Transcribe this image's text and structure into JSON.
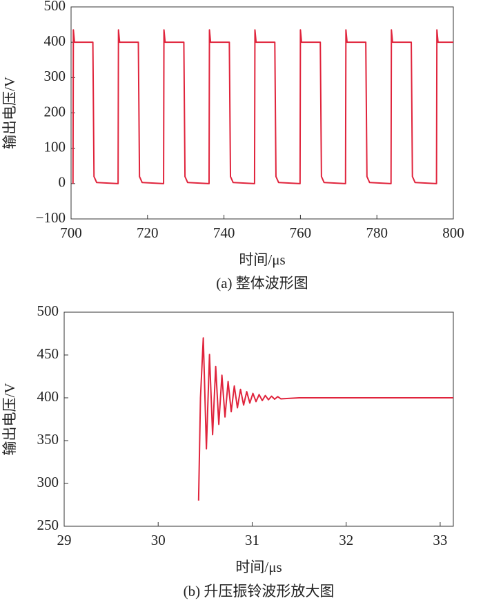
{
  "chart_data": [
    {
      "type": "line",
      "caption": "(a) 整体波形图",
      "xlabel": "时间/μs",
      "ylabel": "输出电压/V",
      "color": "#e0243c",
      "xlim": [
        700,
        800
      ],
      "xticks": [
        700,
        720,
        740,
        760,
        780,
        800
      ],
      "ylim": [
        -100,
        500
      ],
      "yticks": [
        {
          "value": -100,
          "label": "−100"
        },
        0,
        100,
        200,
        300,
        400,
        500
      ],
      "x": [
        700.5,
        700.6,
        700.9,
        705.7,
        706.0,
        706.7,
        712.3,
        712.4,
        712.7,
        717.6,
        717.9,
        718.6,
        724.2,
        724.3,
        724.6,
        729.5,
        729.8,
        730.5,
        736.1,
        736.2,
        736.5,
        741.4,
        741.7,
        742.4,
        748.0,
        748.1,
        748.4,
        753.3,
        753.6,
        754.3,
        759.9,
        760.0,
        760.3,
        765.2,
        765.5,
        766.2,
        771.8,
        771.9,
        772.2,
        777.1,
        777.4,
        778.1,
        783.7,
        783.8,
        784.1,
        789.0,
        789.3,
        790.0,
        795.6,
        795.7,
        796.0,
        800
      ],
      "values": [
        0,
        435,
        400,
        400,
        20,
        3,
        0,
        435,
        400,
        400,
        20,
        3,
        0,
        435,
        400,
        400,
        20,
        3,
        0,
        435,
        400,
        400,
        20,
        3,
        0,
        435,
        400,
        400,
        20,
        3,
        0,
        435,
        400,
        400,
        20,
        3,
        0,
        435,
        400,
        400,
        20,
        3,
        0,
        435,
        400,
        400,
        20,
        3,
        0,
        435,
        400,
        400
      ]
    },
    {
      "type": "line",
      "caption": "(b) 升压振铃波形放大图",
      "xlabel": "时间/μs",
      "ylabel": "输出电压/V",
      "color": "#e0243c",
      "xlim": [
        29,
        33.14
      ],
      "xticks": [
        29,
        30,
        31,
        32,
        33
      ],
      "ylim": [
        250,
        500
      ],
      "yticks": [
        250,
        300,
        350,
        400,
        450,
        500
      ],
      "x": [
        30.43,
        30.45,
        30.48,
        30.513,
        30.546,
        30.579,
        30.612,
        30.645,
        30.678,
        30.711,
        30.744,
        30.777,
        30.81,
        30.843,
        30.876,
        30.909,
        30.942,
        30.975,
        31.008,
        31.041,
        31.074,
        31.107,
        31.14,
        31.173,
        31.206,
        31.239,
        31.272,
        31.305,
        31.5,
        33.14
      ],
      "values": [
        280,
        400,
        470,
        340.5,
        450.6,
        357,
        436.5,
        369,
        426.4,
        377.6,
        419,
        383.8,
        413.8,
        388.3,
        409.9,
        391.5,
        407.2,
        393.9,
        405.2,
        395.6,
        403.8,
        396.8,
        402.7,
        397.7,
        401.9,
        398.4,
        401.4,
        398.8,
        400,
        400
      ]
    }
  ]
}
